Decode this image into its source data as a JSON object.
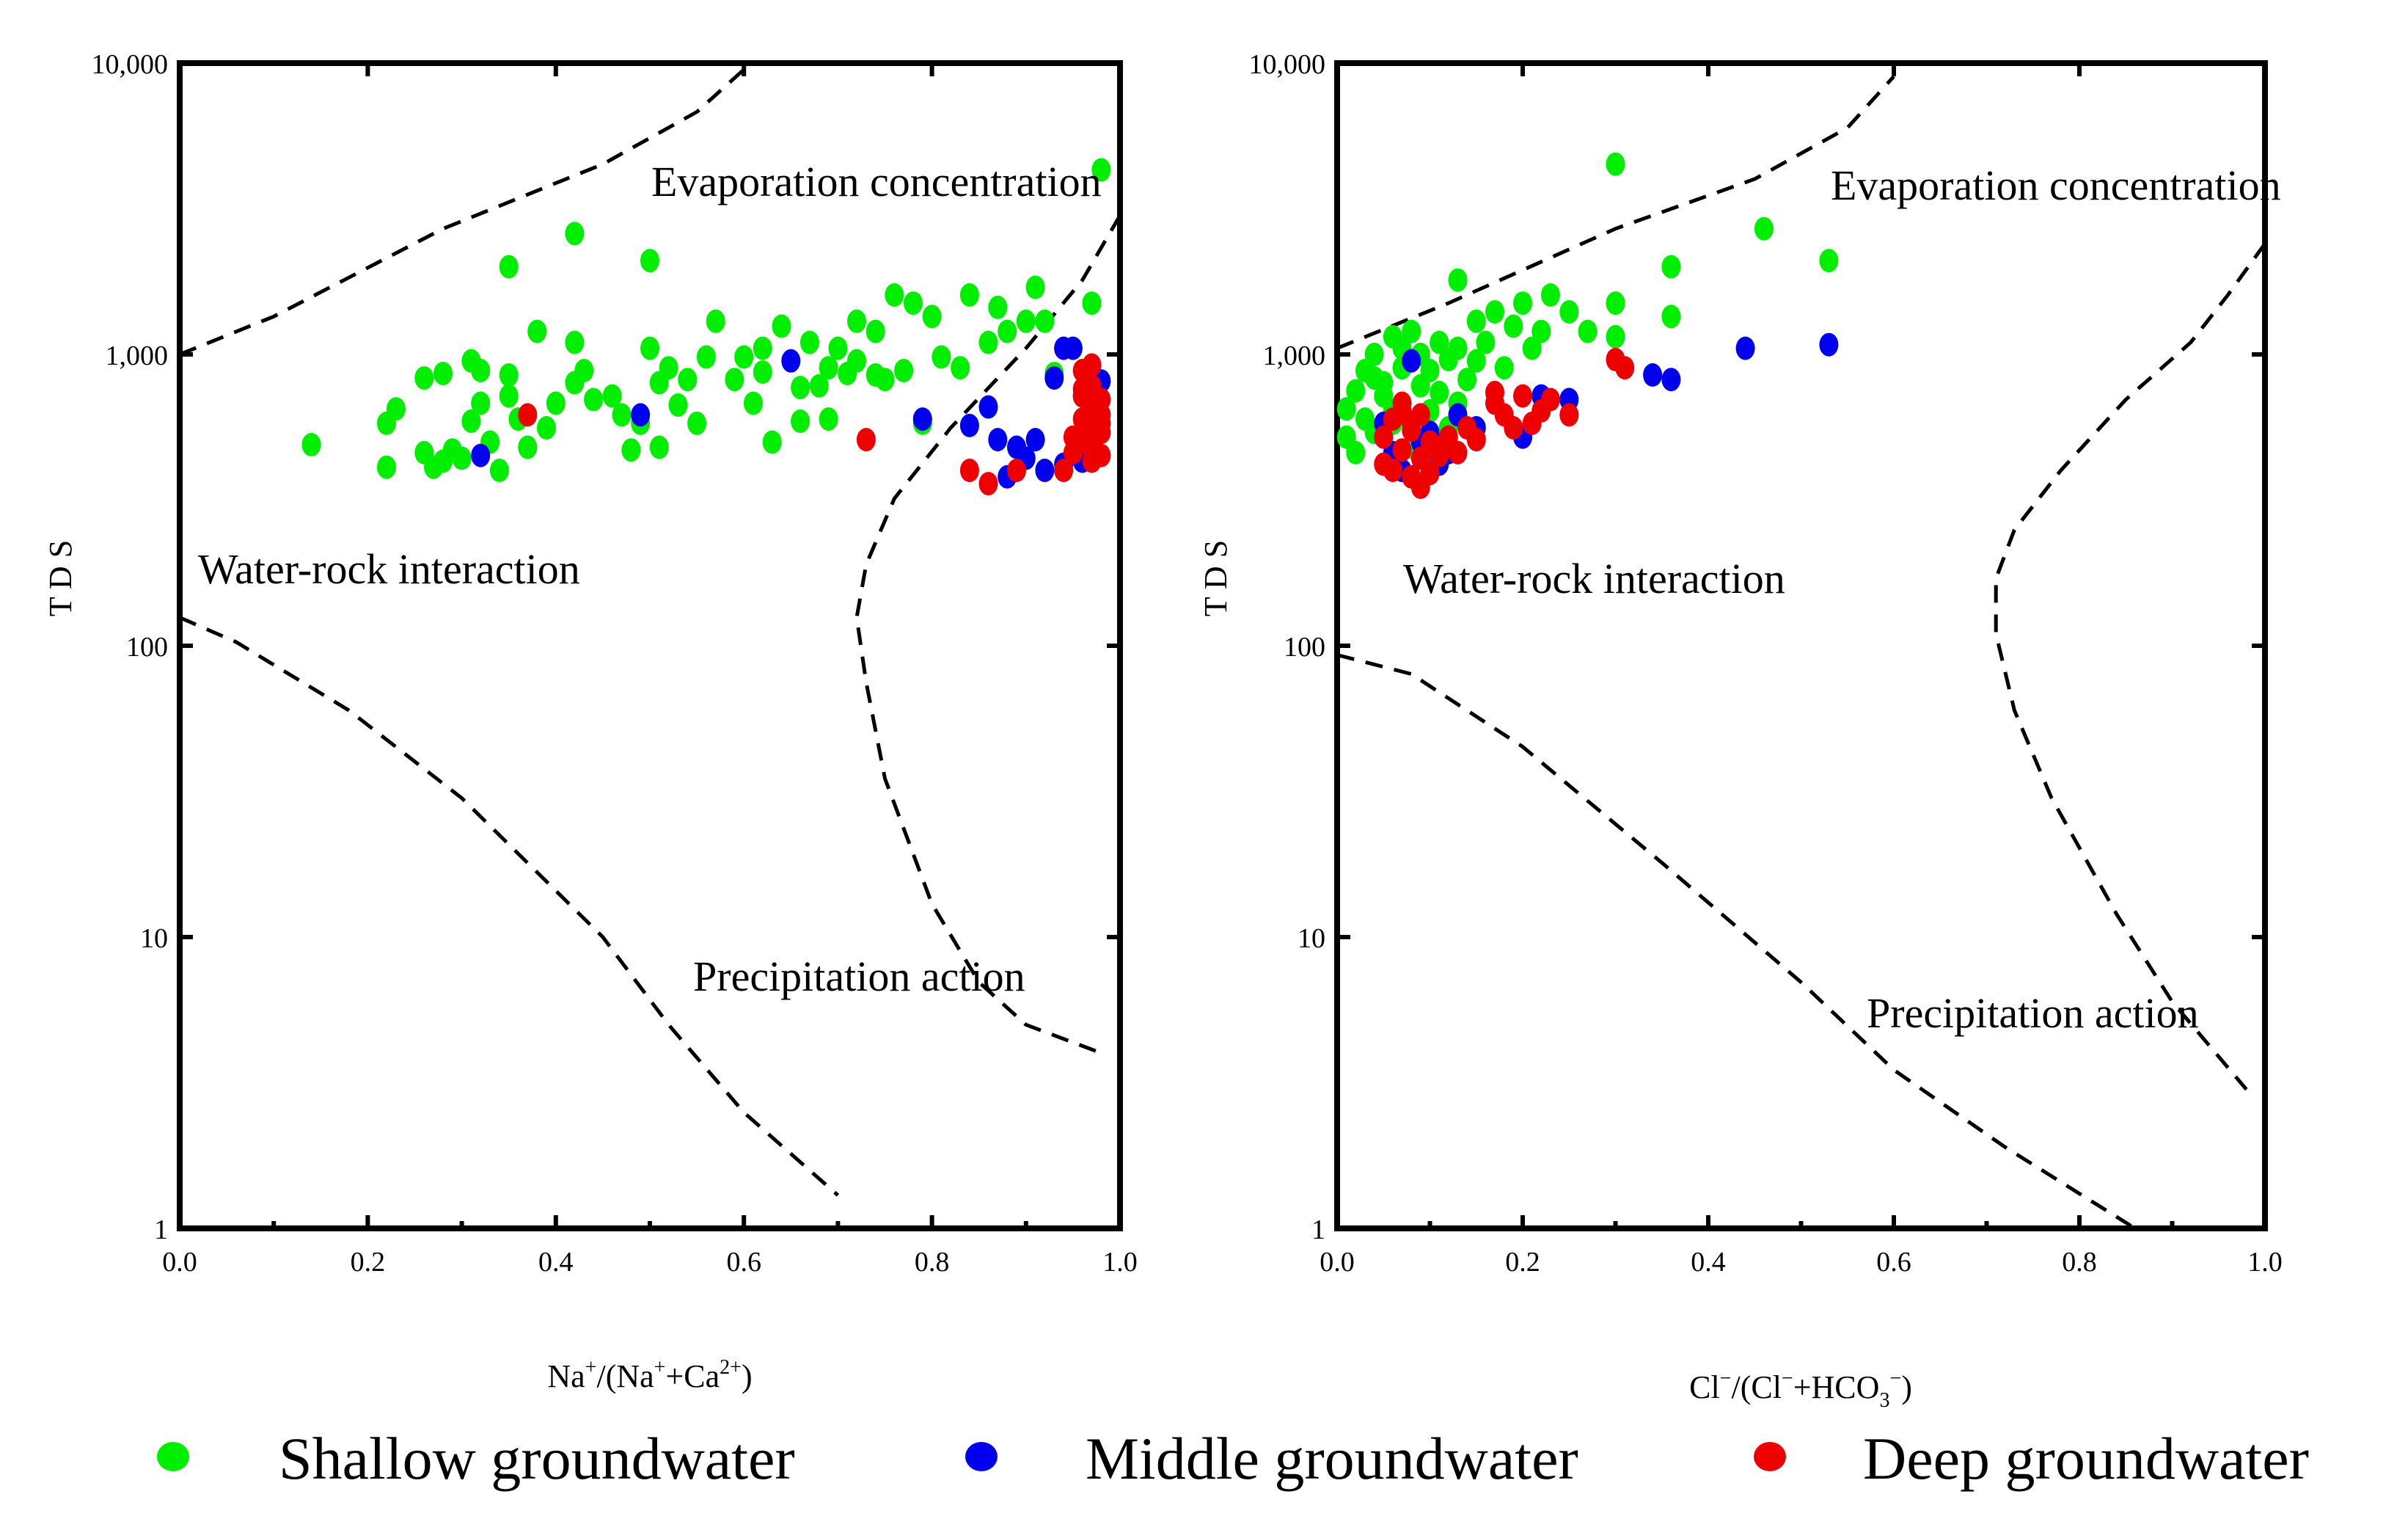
{
  "chart_data": [
    {
      "type": "scatter",
      "xlabel": "Na+/(Na++Ca2+)",
      "xlabel_parts": {
        "a": "Na",
        "a_sup": "+",
        "b": "/(Na",
        "b_sup": "+",
        "c": "+Ca",
        "c_sup": "2+",
        "d": ")"
      },
      "ylabel": "T D S",
      "yscale": "log",
      "xlim": [
        0.0,
        1.0
      ],
      "ylim": [
        1,
        10000
      ],
      "x_ticks": [
        "0.0",
        "0.2",
        "0.4",
        "0.6",
        "0.8",
        "1.0"
      ],
      "y_ticks": [
        "1",
        "10",
        "100",
        "1,000",
        "10,000"
      ],
      "annotations": [
        {
          "text": "Evaporation concentration",
          "x": 0.7,
          "y": 3600
        },
        {
          "text": "Water-rock interaction",
          "x": 0.2,
          "y": 130
        },
        {
          "text": "Precipitation action",
          "x": 0.71,
          "y": 7.5
        }
      ],
      "boundary_lines": [
        {
          "name": "upper",
          "points": [
            [
              0.0,
              1000
            ],
            [
              0.1,
              1350
            ],
            [
              0.28,
              2700
            ],
            [
              0.45,
              4500
            ],
            [
              0.55,
              6800
            ],
            [
              0.6,
              9500
            ]
          ]
        },
        {
          "name": "lower",
          "points": [
            [
              0.0,
              125
            ],
            [
              0.06,
              103
            ],
            [
              0.18,
              60
            ],
            [
              0.3,
              30
            ],
            [
              0.45,
              10
            ],
            [
              0.52,
              5
            ],
            [
              0.6,
              2.5
            ],
            [
              0.7,
              1.3
            ]
          ]
        },
        {
          "name": "right",
          "points": [
            [
              1.0,
              3000
            ],
            [
              0.96,
              1800
            ],
            [
              0.9,
              1050
            ],
            [
              0.82,
              560
            ],
            [
              0.76,
              320
            ],
            [
              0.73,
              190
            ],
            [
              0.72,
              125
            ],
            [
              0.73,
              75
            ],
            [
              0.75,
              35
            ],
            [
              0.8,
              13
            ],
            [
              0.85,
              7
            ],
            [
              0.9,
              5
            ],
            [
              0.98,
              4
            ]
          ]
        }
      ],
      "series": [
        {
          "name": "Shallow groundwater",
          "color": "#00ee00",
          "x": [
            0.14,
            0.22,
            0.22,
            0.23,
            0.26,
            0.26,
            0.27,
            0.28,
            0.28,
            0.29,
            0.3,
            0.31,
            0.31,
            0.32,
            0.32,
            0.33,
            0.34,
            0.35,
            0.35,
            0.36,
            0.37,
            0.38,
            0.39,
            0.4,
            0.42,
            0.42,
            0.43,
            0.44,
            0.46,
            0.47,
            0.48,
            0.49,
            0.5,
            0.51,
            0.52,
            0.53,
            0.54,
            0.55,
            0.56,
            0.57,
            0.59,
            0.6,
            0.61,
            0.62,
            0.63,
            0.64,
            0.66,
            0.66,
            0.67,
            0.68,
            0.69,
            0.7,
            0.71,
            0.72,
            0.72,
            0.74,
            0.75,
            0.77,
            0.78,
            0.79,
            0.8,
            0.81,
            0.83,
            0.84,
            0.86,
            0.87,
            0.88,
            0.9,
            0.91,
            0.92,
            0.93,
            0.97,
            0.98,
            0.35,
            0.42,
            0.5,
            0.76,
            0.62,
            0.74,
            0.69,
            0.51
          ],
          "y": [
            490,
            410,
            580,
            650,
            460,
            830,
            410,
            860,
            430,
            470,
            440,
            950,
            590,
            680,
            880,
            500,
            400,
            720,
            850,
            600,
            480,
            1200,
            560,
            680,
            800,
            1100,
            880,
            700,
            720,
            620,
            470,
            580,
            1050,
            480,
            900,
            670,
            820,
            580,
            980,
            1300,
            820,
            980,
            680,
            870,
            500,
            1250,
            770,
            590,
            1100,
            780,
            900,
            1050,
            860,
            950,
            1300,
            1200,
            820,
            880,
            1500,
            580,
            1350,
            980,
            900,
            1600,
            1100,
            1450,
            1200,
            1300,
            1700,
            1300,
            860,
            1500,
            4300,
            2000,
            2600,
            2100,
            1600,
            1050,
            850,
            600,
            800
          ]
        },
        {
          "name": "Middle groundwater",
          "color": "#0000ee",
          "x": [
            0.32,
            0.49,
            0.65,
            0.79,
            0.84,
            0.86,
            0.87,
            0.88,
            0.89,
            0.9,
            0.91,
            0.92,
            0.93,
            0.94,
            0.95,
            0.96,
            0.97,
            0.98,
            0.94,
            0.96
          ],
          "y": [
            450,
            620,
            950,
            600,
            570,
            660,
            510,
            380,
            480,
            440,
            510,
            400,
            830,
            1050,
            1050,
            720,
            870,
            810,
            420,
            430
          ]
        },
        {
          "name": "Deep groundwater",
          "color": "#ee0000",
          "x": [
            0.37,
            0.73,
            0.84,
            0.86,
            0.89,
            0.94,
            0.95,
            0.95,
            0.96,
            0.96,
            0.96,
            0.97,
            0.97,
            0.97,
            0.97,
            0.98,
            0.98,
            0.98,
            0.98,
            0.97,
            0.96,
            0.97,
            0.98,
            0.96
          ],
          "y": [
            620,
            510,
            400,
            360,
            400,
            400,
            460,
            520,
            880,
            600,
            720,
            660,
            560,
            480,
            780,
            540,
            620,
            700,
            450,
            920,
            760,
            430,
            580,
            500
          ]
        }
      ]
    },
    {
      "type": "scatter",
      "xlabel": "Cl−/(Cl−+HCO3−)",
      "xlabel_parts": {
        "a": "Cl",
        "a_sup": "−",
        "b": "/(Cl",
        "b_sup": "−",
        "c": "+HCO",
        "c_sub": "3",
        "c_sup": "−",
        "d": ")"
      },
      "ylabel": "T D S",
      "yscale": "log",
      "xlim": [
        0.0,
        1.0
      ],
      "ylim": [
        1,
        10000
      ],
      "x_ticks": [
        "0.0",
        "0.2",
        "0.4",
        "0.6",
        "0.8",
        "1.0"
      ],
      "y_ticks": [
        "1",
        "10",
        "100",
        "1,000",
        "10,000"
      ],
      "annotations": [
        {
          "text": "Evaporation concentration",
          "x": 0.75,
          "y": 3500
        },
        {
          "text": "Water-rock interaction",
          "x": 0.26,
          "y": 120
        },
        {
          "text": "Precipitation action",
          "x": 0.73,
          "y": 6.5
        }
      ],
      "boundary_lines": [
        {
          "name": "upper",
          "points": [
            [
              0.0,
              1050
            ],
            [
              0.12,
              1500
            ],
            [
              0.3,
              2700
            ],
            [
              0.45,
              4000
            ],
            [
              0.55,
              6000
            ],
            [
              0.6,
              9000
            ]
          ]
        },
        {
          "name": "lower",
          "points": [
            [
              0.0,
              93
            ],
            [
              0.08,
              80
            ],
            [
              0.2,
              45
            ],
            [
              0.35,
              18
            ],
            [
              0.5,
              7
            ],
            [
              0.6,
              3.5
            ],
            [
              0.72,
              1.9
            ],
            [
              0.86,
              1.0
            ]
          ]
        },
        {
          "name": "right",
          "points": [
            [
              1.0,
              2400
            ],
            [
              0.96,
              1600
            ],
            [
              0.92,
              1100
            ],
            [
              0.85,
              700
            ],
            [
              0.78,
              400
            ],
            [
              0.73,
              250
            ],
            [
              0.71,
              170
            ],
            [
              0.71,
              110
            ],
            [
              0.73,
              60
            ],
            [
              0.77,
              30
            ],
            [
              0.84,
              12
            ],
            [
              0.9,
              6
            ],
            [
              0.98,
              3
            ]
          ]
        }
      ],
      "series": [
        {
          "name": "Shallow groundwater",
          "color": "#00ee00",
          "x": [
            0.01,
            0.01,
            0.02,
            0.02,
            0.03,
            0.03,
            0.04,
            0.04,
            0.05,
            0.05,
            0.06,
            0.06,
            0.07,
            0.07,
            0.08,
            0.08,
            0.09,
            0.09,
            0.1,
            0.1,
            0.11,
            0.11,
            0.12,
            0.12,
            0.13,
            0.13,
            0.14,
            0.15,
            0.15,
            0.16,
            0.17,
            0.18,
            0.19,
            0.2,
            0.21,
            0.22,
            0.23,
            0.25,
            0.27,
            0.3,
            0.3,
            0.36,
            0.36,
            0.3,
            0.46,
            0.53,
            0.13,
            0.04,
            0.06,
            0.1
          ],
          "y": [
            650,
            520,
            750,
            460,
            880,
            600,
            1000,
            540,
            720,
            800,
            1150,
            640,
            900,
            1050,
            480,
            1200,
            780,
            1000,
            880,
            640,
            740,
            1100,
            960,
            560,
            1050,
            1800,
            820,
            1300,
            950,
            1100,
            1400,
            900,
            1250,
            1500,
            1050,
            1200,
            1600,
            1400,
            1200,
            1500,
            1150,
            1350,
            2000,
            4500,
            2700,
            2100,
            680,
            830,
            580,
            420
          ]
        },
        {
          "name": "Middle groundwater",
          "color": "#0000ee",
          "x": [
            0.05,
            0.06,
            0.08,
            0.09,
            0.1,
            0.11,
            0.12,
            0.13,
            0.15,
            0.2,
            0.22,
            0.25,
            0.34,
            0.36,
            0.44,
            0.53,
            0.07
          ],
          "y": [
            580,
            460,
            950,
            500,
            540,
            420,
            460,
            620,
            560,
            520,
            720,
            700,
            850,
            820,
            1050,
            1080,
            400
          ]
        },
        {
          "name": "Deep groundwater",
          "color": "#ee0000",
          "x": [
            0.05,
            0.05,
            0.06,
            0.07,
            0.07,
            0.08,
            0.08,
            0.09,
            0.09,
            0.1,
            0.1,
            0.11,
            0.12,
            0.13,
            0.14,
            0.15,
            0.17,
            0.17,
            0.18,
            0.19,
            0.2,
            0.21,
            0.22,
            0.23,
            0.25,
            0.3,
            0.31,
            0.06,
            0.07,
            0.08,
            0.09,
            0.11
          ],
          "y": [
            420,
            520,
            600,
            470,
            640,
            380,
            550,
            440,
            620,
            500,
            390,
            480,
            520,
            460,
            560,
            510,
            680,
            740,
            620,
            560,
            720,
            580,
            640,
            700,
            620,
            960,
            900,
            400,
            680,
            580,
            350,
            450
          ]
        }
      ]
    }
  ],
  "legend": {
    "items": [
      {
        "label": "Shallow groundwater",
        "color": "#00ee00"
      },
      {
        "label": "Middle groundwater",
        "color": "#0000ee"
      },
      {
        "label": "Deep groundwater",
        "color": "#ee0000"
      }
    ]
  }
}
